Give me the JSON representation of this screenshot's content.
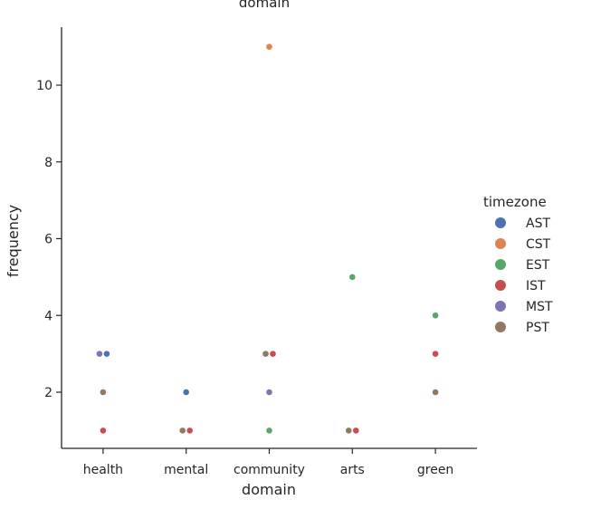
{
  "chart_data": {
    "type": "scatter",
    "title": "domain",
    "xlabel": "domain",
    "ylabel": "frequency",
    "categories": [
      "health",
      "mental",
      "community",
      "arts",
      "green"
    ],
    "yticks": [
      2,
      4,
      6,
      8,
      10
    ],
    "ylim": [
      0.5,
      11.5
    ],
    "grid": false,
    "legend": {
      "title": "timezone",
      "placement": "right",
      "entries": [
        {
          "name": "AST",
          "color": "#4c72b0"
        },
        {
          "name": "CST",
          "color": "#dd8452"
        },
        {
          "name": "EST",
          "color": "#55a868"
        },
        {
          "name": "IST",
          "color": "#c44e52"
        },
        {
          "name": "MST",
          "color": "#8172b3"
        },
        {
          "name": "PST",
          "color": "#937860"
        }
      ]
    },
    "points": [
      {
        "domain": "health",
        "timezone": "MST",
        "frequency": 3
      },
      {
        "domain": "health",
        "timezone": "AST",
        "frequency": 3
      },
      {
        "domain": "health",
        "timezone": "PST",
        "frequency": 2
      },
      {
        "domain": "health",
        "timezone": "IST",
        "frequency": 1
      },
      {
        "domain": "mental",
        "timezone": "AST",
        "frequency": 2
      },
      {
        "domain": "mental",
        "timezone": "PST",
        "frequency": 1
      },
      {
        "domain": "mental",
        "timezone": "IST",
        "frequency": 1
      },
      {
        "domain": "community",
        "timezone": "CST",
        "frequency": 11
      },
      {
        "domain": "community",
        "timezone": "PST",
        "frequency": 3
      },
      {
        "domain": "community",
        "timezone": "IST",
        "frequency": 3
      },
      {
        "domain": "community",
        "timezone": "MST",
        "frequency": 2
      },
      {
        "domain": "community",
        "timezone": "EST",
        "frequency": 1
      },
      {
        "domain": "arts",
        "timezone": "EST",
        "frequency": 5
      },
      {
        "domain": "arts",
        "timezone": "PST",
        "frequency": 1
      },
      {
        "domain": "arts",
        "timezone": "IST",
        "frequency": 1
      },
      {
        "domain": "green",
        "timezone": "EST",
        "frequency": 4
      },
      {
        "domain": "green",
        "timezone": "IST",
        "frequency": 3
      },
      {
        "domain": "green",
        "timezone": "PST",
        "frequency": 2
      }
    ]
  }
}
